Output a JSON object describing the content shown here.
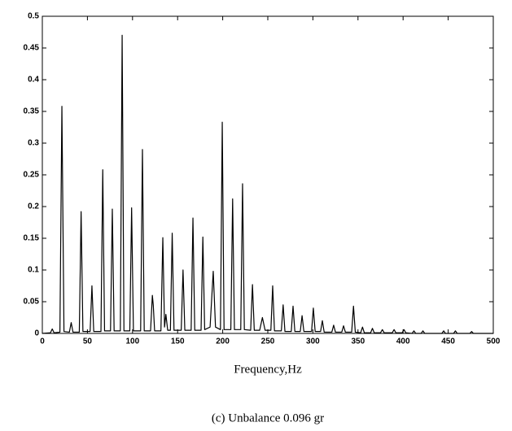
{
  "chart_data": {
    "type": "line",
    "xlabel": "Frequency,Hz",
    "caption": "(c) Unbalance 0.096 gr",
    "xlim": [
      0,
      500
    ],
    "xticks": [
      0,
      50,
      100,
      150,
      200,
      250,
      300,
      350,
      400,
      450,
      500
    ],
    "ylim": [
      0,
      0.5
    ],
    "yticks": [
      0,
      0.05,
      0.1,
      0.15,
      0.2,
      0.25,
      0.3,
      0.35,
      0.4,
      0.45,
      0.5
    ],
    "series": [
      {
        "color": "#000000",
        "x": [
          0,
          9,
          11,
          13,
          19.5,
          21.7,
          24,
          30,
          32,
          34,
          41,
          43,
          45,
          53,
          55,
          57,
          65,
          67,
          69,
          75.6,
          77.6,
          79.6,
          86.5,
          88.5,
          90.5,
          97,
          99,
          101,
          109,
          111,
          113,
          120,
          122,
          123,
          124.5,
          131.5,
          133.6,
          135.5,
          137,
          139,
          142,
          144,
          146,
          154,
          156,
          158,
          165,
          167,
          169,
          176,
          178,
          180,
          186,
          189.5,
          192,
          197.5,
          199.5,
          201.5,
          209,
          211,
          213,
          220,
          222,
          224,
          231,
          233,
          235,
          241,
          244,
          247,
          253.4,
          255.4,
          257.4,
          265,
          267,
          269,
          276,
          278,
          280,
          286,
          288,
          290,
          298.5,
          300.5,
          302.5,
          308.5,
          310.5,
          312.5,
          321,
          323,
          325,
          332,
          334,
          336,
          343,
          345,
          347,
          353,
          355,
          357,
          364,
          366,
          368,
          375,
          377,
          379,
          388,
          390,
          392,
          399,
          401,
          403,
          410,
          412,
          414,
          420,
          422,
          424,
          443,
          445,
          447,
          456,
          458,
          460,
          474,
          476,
          478,
          500
        ],
        "values": [
          0,
          0.001,
          0.007,
          0.001,
          0.002,
          0.358,
          0.003,
          0.002,
          0.017,
          0.002,
          0.002,
          0.192,
          0.003,
          0.003,
          0.075,
          0.003,
          0.003,
          0.258,
          0.004,
          0.004,
          0.196,
          0.004,
          0.004,
          0.47,
          0.004,
          0.004,
          0.198,
          0.004,
          0.004,
          0.29,
          0.004,
          0.004,
          0.06,
          0.045,
          0.004,
          0.004,
          0.151,
          0.01,
          0.03,
          0.005,
          0.005,
          0.158,
          0.005,
          0.005,
          0.1,
          0.005,
          0.005,
          0.182,
          0.005,
          0.005,
          0.152,
          0.006,
          0.01,
          0.098,
          0.01,
          0.006,
          0.333,
          0.006,
          0.006,
          0.212,
          0.006,
          0.006,
          0.236,
          0.006,
          0.005,
          0.077,
          0.005,
          0.005,
          0.025,
          0.005,
          0.005,
          0.075,
          0.004,
          0.004,
          0.045,
          0.003,
          0.003,
          0.043,
          0.003,
          0.003,
          0.028,
          0.003,
          0.003,
          0.04,
          0.003,
          0.003,
          0.02,
          0.002,
          0.002,
          0.013,
          0.002,
          0.002,
          0.012,
          0.002,
          0.002,
          0.043,
          0.002,
          0.001,
          0.01,
          0.001,
          0.001,
          0.008,
          0.001,
          0.001,
          0.006,
          0.001,
          0.001,
          0.006,
          0.001,
          0.001,
          0.006,
          0.001,
          0,
          0.004,
          0,
          0,
          0.004,
          0,
          0,
          0.004,
          0,
          0,
          0.004,
          0,
          0,
          0.003,
          0,
          0
        ]
      }
    ]
  }
}
